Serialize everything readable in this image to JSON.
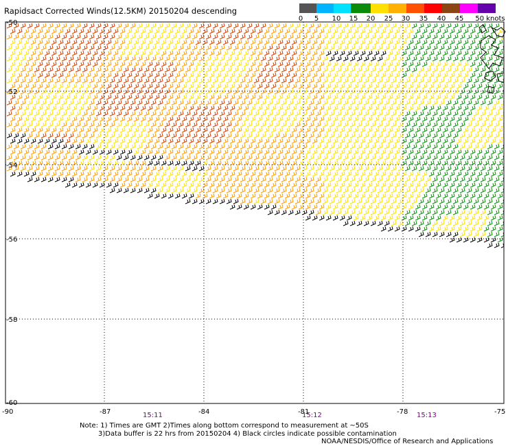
{
  "title": "Rapidsact Corrected Winds(12.5KM) 20150204 descending",
  "legend": {
    "unit_label": "50 knots",
    "labels": [
      "0",
      "5",
      "10",
      "15",
      "20",
      "25",
      "30",
      "35",
      "40",
      "45"
    ],
    "colors": [
      "#555555",
      "#00b4ff",
      "#00e0ff",
      "#0a8c0a",
      "#ffe000",
      "#ffb000",
      "#ff5000",
      "#ff0000",
      "#8b4513",
      "#ff00ff",
      "#6600aa"
    ]
  },
  "axes": {
    "lon_labels": [
      "-90",
      "-87",
      "-84",
      "-81",
      "-78",
      "-75"
    ],
    "lat_labels": [
      "-50",
      "-52",
      "-54",
      "-56",
      "-58",
      "-60"
    ]
  },
  "times": [
    "15:11",
    "15:12",
    "15:13"
  ],
  "notes": {
    "line1": "Note: 1) Times are GMT 2)Times along bottom correspond to measurement at ~50S",
    "line2": "3)Data buffer is 22 hrs from 20150204 4) Black circles indicate possible contamination"
  },
  "credit": "NOAA/NESDIS/Office of Research and Applications",
  "colors": {
    "wind_black": "#000000",
    "wind_yellow": "#ffe000",
    "wind_orange": "#ff9a00",
    "wind_red": "#d04000",
    "wind_green": "#0a8c0a"
  }
}
